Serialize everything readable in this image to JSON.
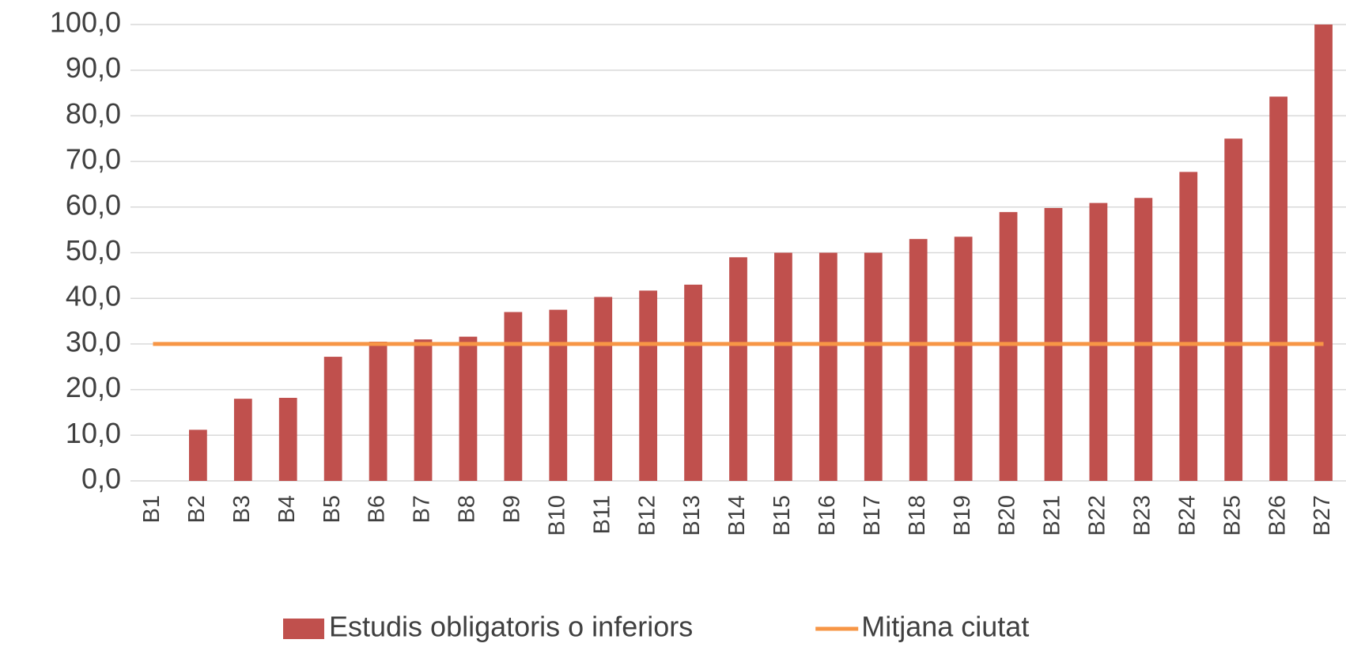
{
  "chart_data": {
    "type": "bar",
    "categories": [
      "B1",
      "B2",
      "B3",
      "B4",
      "B5",
      "B6",
      "B7",
      "B8",
      "B9",
      "B10",
      "B11",
      "B12",
      "B13",
      "B14",
      "B15",
      "B16",
      "B17",
      "B18",
      "B19",
      "B20",
      "B21",
      "B22",
      "B23",
      "B24",
      "B25",
      "B26",
      "B27"
    ],
    "series": [
      {
        "name": "Estudis obligatoris o inferiors",
        "color": "#c0504d",
        "type": "bar",
        "values": [
          0,
          11.2,
          18,
          18.2,
          27.2,
          30.5,
          31,
          31.6,
          37,
          37.5,
          40.3,
          41.7,
          43,
          49,
          50,
          50,
          50,
          53,
          53.5,
          58.9,
          59.8,
          60.9,
          62,
          67.7,
          75,
          84.2,
          100
        ]
      },
      {
        "name": "Mitjana ciutat",
        "color": "#f79646",
        "type": "line",
        "values": [
          30,
          30,
          30,
          30,
          30,
          30,
          30,
          30,
          30,
          30,
          30,
          30,
          30,
          30,
          30,
          30,
          30,
          30,
          30,
          30,
          30,
          30,
          30,
          30,
          30,
          30,
          30
        ]
      }
    ],
    "ylim": [
      0,
      100
    ],
    "yticks": [
      {
        "value": 0,
        "label": "0,0"
      },
      {
        "value": 10,
        "label": "10,0"
      },
      {
        "value": 20,
        "label": "20,0"
      },
      {
        "value": 30,
        "label": "30,0"
      },
      {
        "value": 40,
        "label": "40,0"
      },
      {
        "value": 50,
        "label": "50,0"
      },
      {
        "value": 60,
        "label": "60,0"
      },
      {
        "value": 70,
        "label": "70,0"
      },
      {
        "value": 80,
        "label": "80,0"
      },
      {
        "value": 90,
        "label": "90,0"
      },
      {
        "value": 100,
        "label": "100,0"
      }
    ],
    "grid": true,
    "legend": "bottom"
  }
}
